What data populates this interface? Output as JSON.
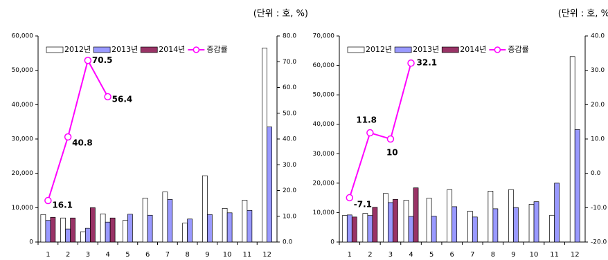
{
  "chart_data": [
    {
      "type": "bar",
      "subtitle": "(단위 : 호, %)",
      "categories": [
        "1",
        "2",
        "3",
        "4",
        "5",
        "6",
        "7",
        "8",
        "9",
        "10",
        "11",
        "12"
      ],
      "series": [
        {
          "name": "2012년",
          "color": "#ffffff",
          "values": [
            8000,
            7000,
            3000,
            8200,
            6300,
            12800,
            14600,
            5500,
            19300,
            9800,
            12200,
            56500
          ]
        },
        {
          "name": "2013년",
          "color": "#9999ff",
          "values": [
            6300,
            3800,
            4000,
            5800,
            8100,
            7800,
            12400,
            6700,
            8000,
            8500,
            9200,
            33500
          ]
        },
        {
          "name": "2014년",
          "color": "#993366",
          "values": [
            7200,
            7000,
            10000,
            7000,
            null,
            null,
            null,
            null,
            null,
            null,
            null,
            null
          ]
        },
        {
          "name": "증감률",
          "color": "#ff00ff",
          "type": "line",
          "axis": "y2",
          "values": [
            16.1,
            40.8,
            70.5,
            56.4,
            null,
            null,
            null,
            null,
            null,
            null,
            null,
            null
          ]
        }
      ],
      "ylim": [
        0,
        60000
      ],
      "yticks": [
        0,
        {
          "value": 10000,
          "label": "10,000"
        },
        {
          "value": 20000,
          "label": "20,000"
        },
        {
          "value": 30000,
          "label": "30,000"
        },
        {
          "value": 40000,
          "label": "40,000"
        },
        {
          "value": 50000,
          "label": "50,000"
        },
        {
          "value": 60000,
          "label": "60,000"
        }
      ],
      "y2lim": [
        0,
        80
      ],
      "y2ticks": [
        {
          "value": 0,
          "label": "0.0"
        },
        {
          "value": 10,
          "label": "10.0"
        },
        {
          "value": 20,
          "label": "20.0"
        },
        {
          "value": 30,
          "label": "30.0"
        },
        {
          "value": 40,
          "label": "40.0"
        },
        {
          "value": 50,
          "label": "50.0"
        },
        {
          "value": 60,
          "label": "60.0"
        },
        {
          "value": 70,
          "label": "70.0"
        },
        {
          "value": 80,
          "label": "80.0"
        }
      ],
      "grid": false,
      "legend": "top-left"
    },
    {
      "type": "bar",
      "subtitle": "(단위 : 호, %)",
      "categories": [
        "1",
        "2",
        "3",
        "4",
        "5",
        "6",
        "7",
        "8",
        "9",
        "10",
        "11",
        "12"
      ],
      "series": [
        {
          "name": "2012년",
          "color": "#ffffff",
          "values": [
            9000,
            9700,
            16500,
            14200,
            14900,
            17800,
            10500,
            17300,
            17800,
            12800,
            9100,
            63000
          ]
        },
        {
          "name": "2013년",
          "color": "#9999ff",
          "values": [
            9200,
            9000,
            13400,
            8700,
            8800,
            12000,
            8500,
            11300,
            11700,
            13700,
            20000,
            38200
          ]
        },
        {
          "name": "2014년",
          "color": "#993366",
          "values": [
            8500,
            11800,
            14500,
            18400,
            null,
            null,
            null,
            null,
            null,
            null,
            null,
            null
          ]
        },
        {
          "name": "증감률",
          "color": "#ff00ff",
          "type": "line",
          "axis": "y2",
          "values": [
            -7.1,
            11.8,
            10.0,
            32.1,
            null,
            null,
            null,
            null,
            null,
            null,
            null,
            null
          ]
        }
      ],
      "ylim": [
        0,
        70000
      ],
      "yticks": [
        0,
        {
          "value": 10000,
          "label": "10,000"
        },
        {
          "value": 20000,
          "label": "20,000"
        },
        {
          "value": 30000,
          "label": "30,000"
        },
        {
          "value": 40000,
          "label": "40,000"
        },
        {
          "value": 50000,
          "label": "50,000"
        },
        {
          "value": 60000,
          "label": "60,000"
        },
        {
          "value": 70000,
          "label": "70,000"
        }
      ],
      "y2lim": [
        -20,
        40
      ],
      "y2ticks": [
        {
          "value": -20,
          "label": "-20.0"
        },
        {
          "value": -10,
          "label": "-10.0"
        },
        {
          "value": 0,
          "label": "0.0"
        },
        {
          "value": 10,
          "label": "10.0"
        },
        {
          "value": 20,
          "label": "20.0"
        },
        {
          "value": 30,
          "label": "30.0"
        },
        {
          "value": 40,
          "label": "40.0"
        }
      ],
      "grid": false,
      "legend": "top-left"
    }
  ]
}
